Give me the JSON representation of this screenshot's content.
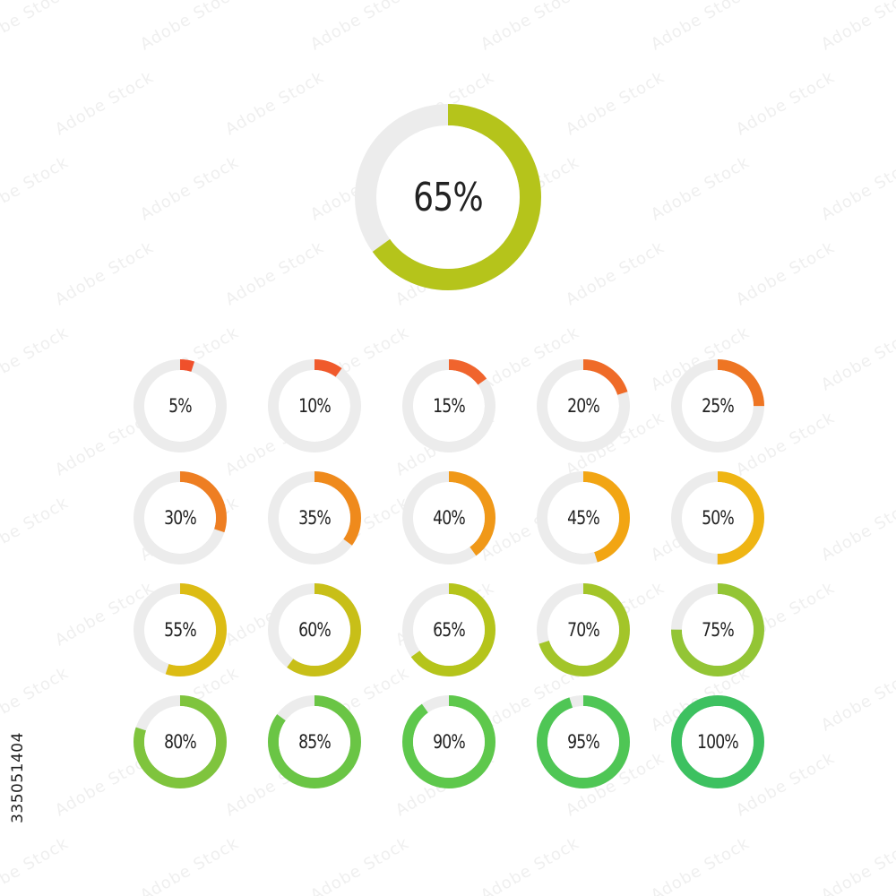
{
  "main_gauge": {
    "label": "65%",
    "value": 0.65,
    "color": "#b5c41b"
  },
  "gauges": [
    {
      "label": "5%",
      "value": 0.05,
      "color": "#f0502b"
    },
    {
      "label": "10%",
      "value": 0.1,
      "color": "#f05a2c"
    },
    {
      "label": "15%",
      "value": 0.15,
      "color": "#f0642d"
    },
    {
      "label": "20%",
      "value": 0.2,
      "color": "#ef6b28"
    },
    {
      "label": "25%",
      "value": 0.25,
      "color": "#ee7523"
    },
    {
      "label": "30%",
      "value": 0.3,
      "color": "#ee7e22"
    },
    {
      "label": "35%",
      "value": 0.35,
      "color": "#ef8a1c"
    },
    {
      "label": "40%",
      "value": 0.4,
      "color": "#f09818"
    },
    {
      "label": "45%",
      "value": 0.45,
      "color": "#f2a513"
    },
    {
      "label": "50%",
      "value": 0.5,
      "color": "#efb514"
    },
    {
      "label": "55%",
      "value": 0.55,
      "color": "#dcbc14"
    },
    {
      "label": "60%",
      "value": 0.6,
      "color": "#c8bf18"
    },
    {
      "label": "65%",
      "value": 0.65,
      "color": "#b5c41b"
    },
    {
      "label": "70%",
      "value": 0.7,
      "color": "#a3c529"
    },
    {
      "label": "75%",
      "value": 0.75,
      "color": "#93c535"
    },
    {
      "label": "80%",
      "value": 0.8,
      "color": "#7fc43d"
    },
    {
      "label": "85%",
      "value": 0.85,
      "color": "#6ac545"
    },
    {
      "label": "90%",
      "value": 0.9,
      "color": "#5ec84c"
    },
    {
      "label": "95%",
      "value": 0.95,
      "color": "#4fc655"
    },
    {
      "label": "100%",
      "value": 1.0,
      "color": "#3dc160"
    }
  ],
  "track_color": "#ececec",
  "stock_id": "335051404",
  "watermark_text": "Adobe Stock"
}
